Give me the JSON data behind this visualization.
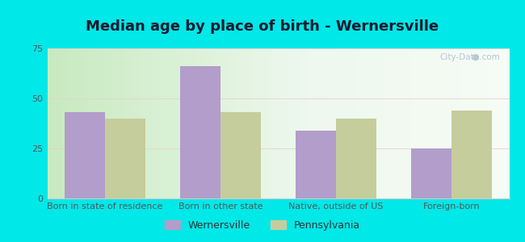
{
  "title": "Median age by place of birth - Wernersville",
  "categories": [
    "Born in state of residence",
    "Born in other state",
    "Native, outside of US",
    "Foreign-born"
  ],
  "wernersville_values": [
    43,
    66,
    34,
    25
  ],
  "pennsylvania_values": [
    40,
    43,
    40,
    44
  ],
  "wernersville_color": "#b39dca",
  "pennsylvania_color": "#c5cd9d",
  "bg_left_color": "#c8eac0",
  "bg_right_color": "#f0f8f0",
  "outer_background": "#00e8e8",
  "ylim": [
    0,
    75
  ],
  "yticks": [
    0,
    25,
    50,
    75
  ],
  "bar_width": 0.35,
  "legend_labels": [
    "Wernersville",
    "Pennsylvania"
  ],
  "title_fontsize": 13,
  "axis_label_fontsize": 8,
  "legend_fontsize": 9,
  "title_color": "#1a1a2e"
}
